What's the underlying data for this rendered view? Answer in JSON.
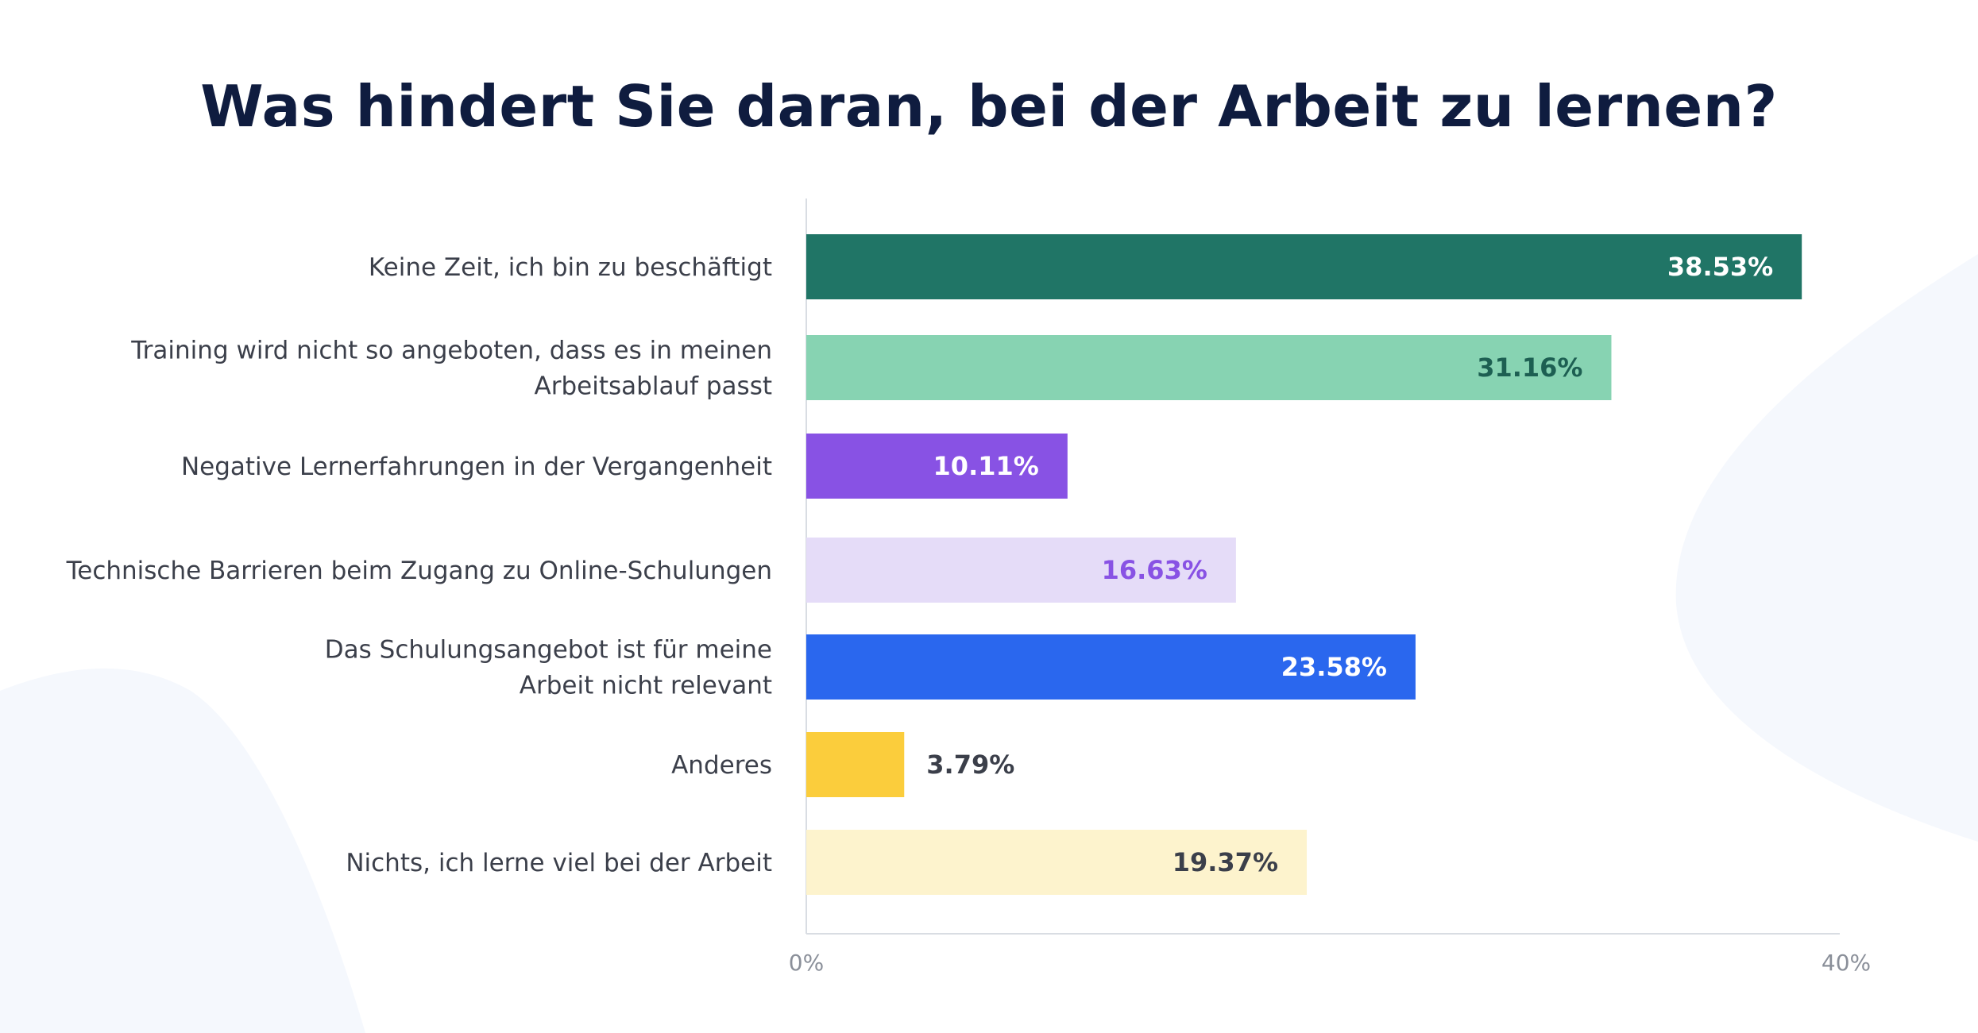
{
  "chart_data": {
    "type": "bar",
    "orientation": "horizontal",
    "title": "Was hindert Sie daran, bei der Arbeit zu lernen?",
    "xlabel": "",
    "ylabel": "",
    "xlim": [
      0,
      40
    ],
    "x_ticks": [
      "0%",
      "40%"
    ],
    "categories": [
      [
        "Keine Zeit, ich bin zu beschäftigt"
      ],
      [
        "Training wird nicht so angeboten, dass es in meinen",
        "Arbeitsablauf passt"
      ],
      [
        "Negative Lernerfahrungen in der Vergangenheit"
      ],
      [
        "Technische Barrieren beim Zugang zu Online-Schulungen"
      ],
      [
        "Das Schulungsangebot ist für meine",
        "Arbeit nicht relevant"
      ],
      [
        "Anderes"
      ],
      [
        "Nichts, ich lerne viel bei der Arbeit"
      ]
    ],
    "values": [
      38.53,
      31.16,
      10.11,
      16.63,
      23.58,
      3.79,
      19.37
    ],
    "value_labels": [
      "38.53%",
      "31.16%",
      "10.11%",
      "16.63%",
      "23.58%",
      "3.79%",
      "19.37%"
    ],
    "bar_colors": [
      "#207566",
      "#87d3b2",
      "#8852e4",
      "#e5dcf8",
      "#2a67ee",
      "#fbcd3c",
      "#fdf3cd"
    ],
    "label_colors": [
      "#ffffff",
      "#1d5f52",
      "#ffffff",
      "#8852e4",
      "#ffffff",
      "#3b3f4a",
      "#3b3f4a"
    ],
    "grid": false
  }
}
